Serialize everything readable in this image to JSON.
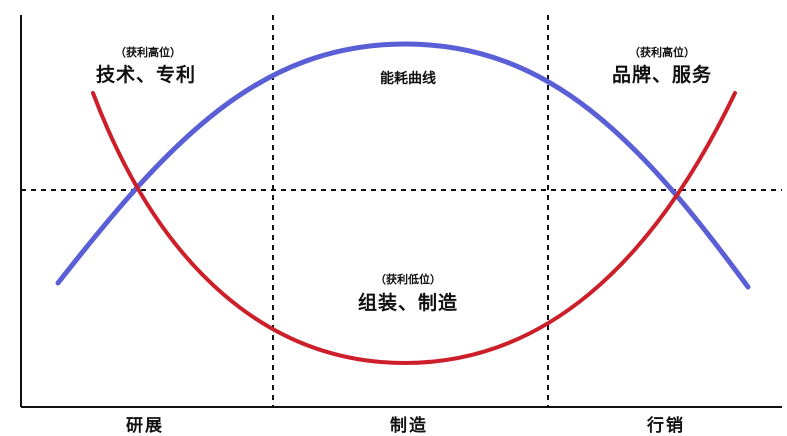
{
  "zones": {
    "left": {
      "sub": "（获利高位）",
      "main": "技术、专利"
    },
    "right": {
      "sub": "（获利高位）",
      "main": "品牌、服务"
    },
    "bottom": {
      "sub": "（获利低位）",
      "main": "组装、制造"
    }
  },
  "curve_label": "能耗曲线",
  "x_labels": [
    "研展",
    "制造",
    "行销"
  ],
  "colors": {
    "blue_curve": "#5a5fd6",
    "red_curve": "#cc1f2a",
    "axis": "#111111",
    "dashed": "#111111"
  },
  "icons": {
    "blue_curve": "inverted-u-curve",
    "red_curve": "u-curve"
  }
}
